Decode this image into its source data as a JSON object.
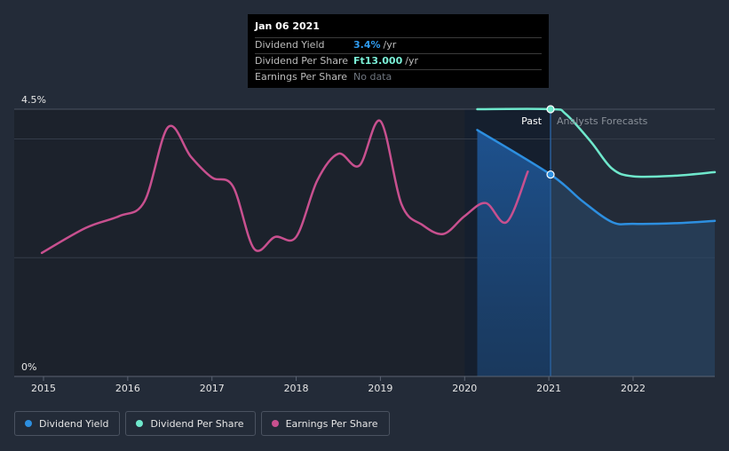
{
  "tooltip": {
    "date": "Jan 06 2021",
    "rows": [
      {
        "label": "Dividend Yield",
        "value": "3.4%",
        "unit": "/yr"
      },
      {
        "label": "Dividend Per Share",
        "value": "Ft13.000",
        "unit": "/yr"
      },
      {
        "label": "Earnings Per Share",
        "value": "No data"
      }
    ]
  },
  "regions": {
    "past": "Past",
    "forecast": "Analysts Forecasts"
  },
  "legend": [
    {
      "label": "Dividend Yield",
      "color": "#2d8fe0"
    },
    {
      "label": "Dividend Per Share",
      "color": "#6fe8cc"
    },
    {
      "label": "Earnings Per Share",
      "color": "#c8508f"
    }
  ],
  "chart_data": {
    "type": "line",
    "title": "",
    "xlabel": "",
    "ylabel": "",
    "xlim": [
      2015.0,
      2022.97
    ],
    "ylim": [
      0,
      4.5
    ],
    "ytick_labels": [
      {
        "value": 4.5,
        "label": "4.5%"
      },
      {
        "value": 0,
        "label": "0%"
      }
    ],
    "xticks": [
      2015,
      2016,
      2017,
      2018,
      2019,
      2020,
      2021,
      2022
    ],
    "xtick_labels": [
      "2015",
      "2016",
      "2017",
      "2018",
      "2019",
      "2020",
      "2021",
      "2022"
    ],
    "gridlines_y": [
      4.5,
      4.0,
      2.0
    ],
    "past_region_start": 2020.0,
    "now_x": 2021.02,
    "series": [
      {
        "name": "Dividend Yield",
        "color": "#2d8fe0",
        "area": true,
        "x": [
          2020.15,
          2021.02,
          2021.4,
          2021.75,
          2022.0,
          2022.5,
          2022.97
        ],
        "y": [
          4.15,
          3.4,
          2.95,
          2.6,
          2.57,
          2.58,
          2.62
        ]
      },
      {
        "name": "Dividend Per Share",
        "color": "#6fe8cc",
        "area": false,
        "x": [
          2020.15,
          2021.02,
          2021.2,
          2021.5,
          2021.75,
          2022.0,
          2022.5,
          2022.97
        ],
        "y": [
          4.5,
          4.5,
          4.42,
          3.95,
          3.5,
          3.37,
          3.38,
          3.44
        ]
      },
      {
        "name": "Earnings Per Share",
        "color": "#c8508f",
        "area": false,
        "x": [
          2014.98,
          2015.5,
          2015.9,
          2016.2,
          2016.48,
          2016.75,
          2017.0,
          2017.25,
          2017.5,
          2017.75,
          2018.0,
          2018.25,
          2018.5,
          2018.75,
          2019.0,
          2019.25,
          2019.5,
          2019.75,
          2020.0,
          2020.25,
          2020.5,
          2020.75
        ],
        "y": [
          2.08,
          2.5,
          2.7,
          2.95,
          4.2,
          3.7,
          3.35,
          3.2,
          2.15,
          2.35,
          2.35,
          3.3,
          3.75,
          3.55,
          4.3,
          2.9,
          2.55,
          2.4,
          2.7,
          2.92,
          2.6,
          3.45
        ]
      }
    ]
  }
}
